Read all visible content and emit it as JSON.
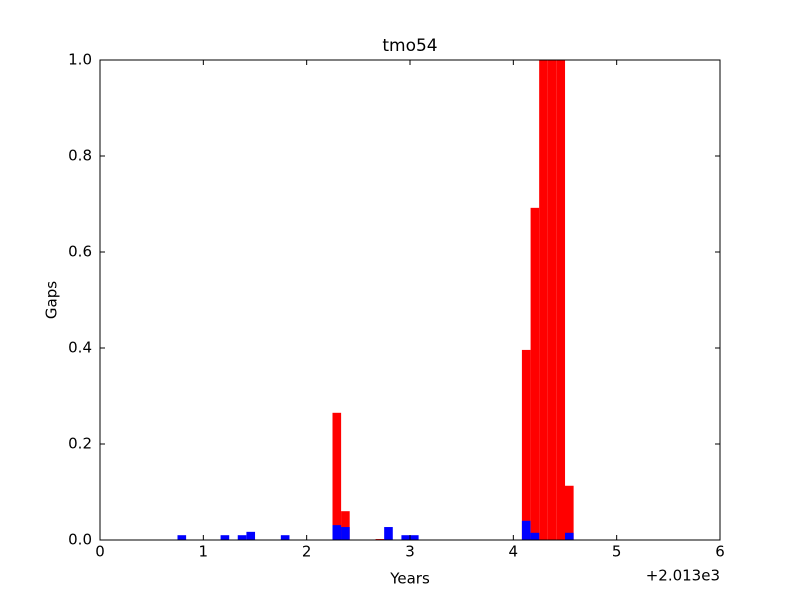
{
  "chart_data": {
    "type": "bar",
    "title": "tmo54",
    "x_label": "Years",
    "y_label": "Gaps",
    "x_offset_label": "+2.013e3",
    "x": [
      0.75,
      1.167,
      1.333,
      1.417,
      1.75,
      2.25,
      2.333,
      2.667,
      2.75,
      2.917,
      3.0,
      4.083,
      4.167,
      4.25,
      4.333,
      4.417,
      4.5
    ],
    "series": [
      {
        "color": "#ff0000",
        "values": [
          null,
          null,
          null,
          null,
          null,
          0.265,
          0.06,
          0.002,
          null,
          null,
          null,
          0.396,
          0.692,
          1,
          1,
          1,
          0.113
        ]
      },
      {
        "color": "#0000ff",
        "values": [
          0.01,
          0.01,
          0.01,
          0.017,
          0.01,
          0.031,
          0.027,
          null,
          0.027,
          0.01,
          0.01,
          0.04,
          0.015,
          null,
          null,
          null,
          0.015
        ]
      }
    ],
    "xlim": [
      0,
      6
    ],
    "xticks": [
      0,
      1,
      2,
      3,
      4,
      5,
      6
    ],
    "ylim": [
      0,
      1
    ],
    "yticks": [
      {
        "value": 0,
        "label": "0.0"
      },
      {
        "value": 0.2,
        "label": "0.2"
      },
      {
        "value": 0.4,
        "label": "0.4"
      },
      {
        "value": 0.6,
        "label": "0.6"
      },
      {
        "value": 0.8,
        "label": "0.8"
      },
      {
        "value": 1,
        "label": "1.0"
      }
    ],
    "grid": false
  }
}
